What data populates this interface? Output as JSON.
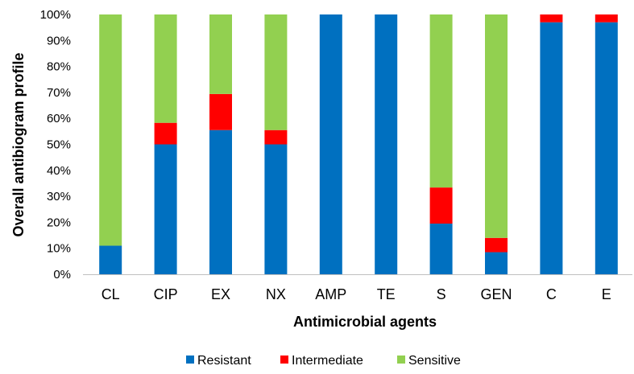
{
  "chart_data": {
    "type": "bar",
    "stacked": true,
    "percent": true,
    "categories": [
      "CL",
      "CIP",
      "EX",
      "NX",
      "AMP",
      "TE",
      "S",
      "GEN",
      "C",
      "E"
    ],
    "series": [
      {
        "name": "Resistant",
        "color": "#0070C0",
        "values": [
          11,
          50,
          55.5,
          50,
          100,
          100,
          19.5,
          8.5,
          97,
          97
        ]
      },
      {
        "name": "Intermediate",
        "color": "#FF0000",
        "values": [
          0,
          8.3,
          13.9,
          5.5,
          0,
          0,
          13.9,
          5.5,
          3,
          3
        ]
      },
      {
        "name": "Sensitive",
        "color": "#92D050",
        "values": [
          89,
          41.7,
          30.6,
          44.5,
          0,
          0,
          66.6,
          86,
          0,
          0
        ]
      }
    ],
    "xlabel": "Antimicrobial agents",
    "ylabel": "Overall antibiogram profile",
    "ylim": [
      0,
      100
    ],
    "yticks": [
      "0%",
      "10%",
      "20%",
      "30%",
      "40%",
      "50%",
      "60%",
      "70%",
      "80%",
      "90%",
      "100%"
    ],
    "grid": false,
    "legend_position": "bottom"
  }
}
